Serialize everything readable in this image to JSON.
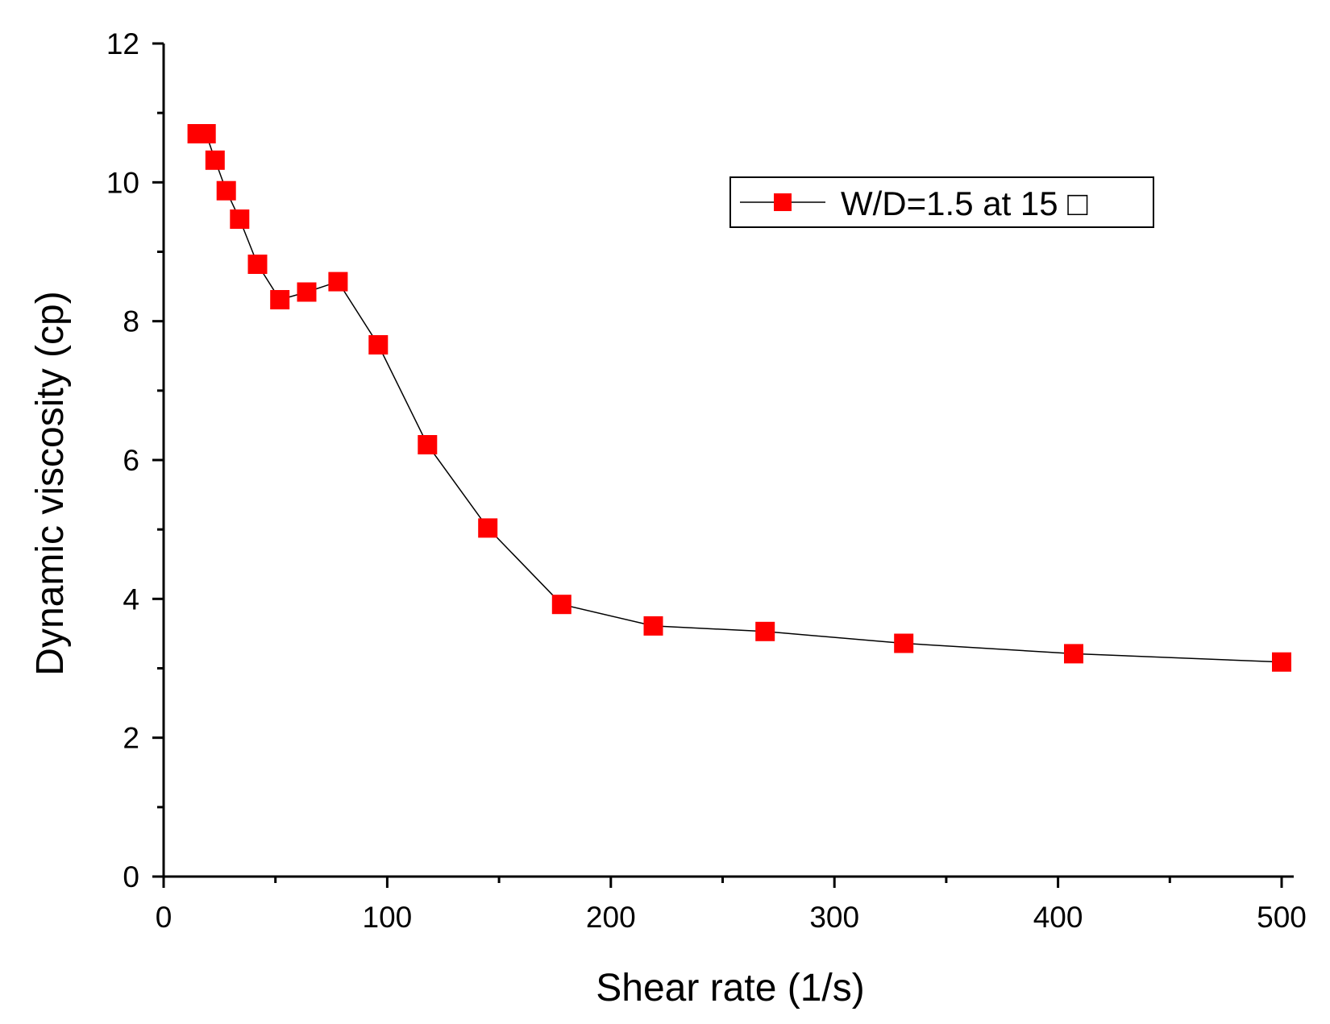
{
  "chart_data": {
    "type": "line",
    "title": "",
    "xlabel": "Shear rate (1/s)",
    "ylabel": "Dynamic viscosity (cp)",
    "xlim": [
      0,
      505
    ],
    "ylim": [
      0,
      12
    ],
    "x_ticks": [
      0,
      100,
      200,
      300,
      400,
      500
    ],
    "x_minor_ticks": [
      50,
      150,
      250,
      350,
      450
    ],
    "x_tick_labels": [
      "0",
      "100",
      "200",
      "300",
      "400",
      "500"
    ],
    "y_ticks": [
      0,
      2,
      4,
      6,
      8,
      10,
      12
    ],
    "y_minor_ticks": [
      1,
      3,
      5,
      7,
      9,
      11
    ],
    "y_tick_labels": [
      "0",
      "2",
      "4",
      "6",
      "8",
      "10",
      "12"
    ],
    "grid": false,
    "legend_position": "top-right",
    "series": [
      {
        "name": "W/D=1.5 at 15 □",
        "color": "#ff0000",
        "marker": "square",
        "line_color": "#000000",
        "x": [
          15,
          19,
          23,
          28,
          34,
          42,
          52,
          64,
          78,
          96,
          118,
          145,
          178,
          219,
          269,
          331,
          407,
          500
        ],
        "y": [
          10.7,
          10.7,
          10.32,
          9.88,
          9.47,
          8.82,
          8.31,
          8.42,
          8.57,
          7.66,
          6.22,
          5.02,
          3.92,
          3.61,
          3.53,
          3.36,
          3.21,
          3.09
        ]
      }
    ]
  }
}
